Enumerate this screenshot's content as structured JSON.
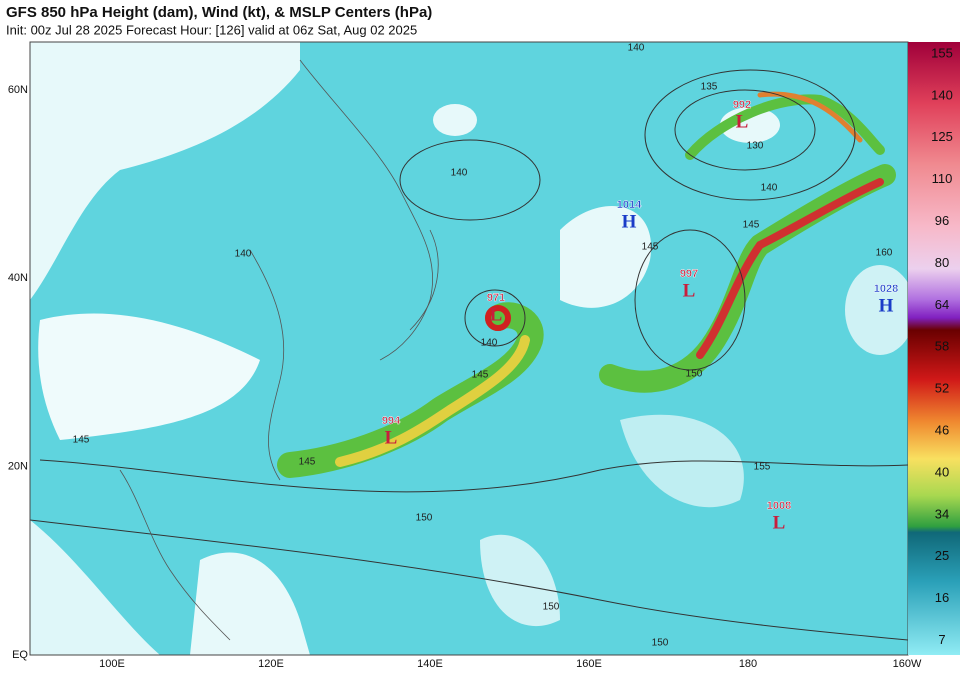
{
  "header": {
    "title": "GFS 850 hPa Height (dam), Wind (kt), & MSLP Centers (hPa)",
    "subtitle": "Init: 00z Jul 28 2025   Forecast Hour: [126]   valid at 06z Sat, Aug 02 2025"
  },
  "map": {
    "lat_labels": [
      "60N",
      "40N",
      "20N",
      "EQ"
    ],
    "lon_labels": [
      "100E",
      "120E",
      "140E",
      "160E",
      "180",
      "160W"
    ],
    "centers": [
      {
        "pressure": "992",
        "type": "L"
      },
      {
        "pressure": "1014",
        "type": "H"
      },
      {
        "pressure": "997",
        "type": "L"
      },
      {
        "pressure": "1028",
        "type": "H"
      },
      {
        "pressure": "971",
        "type": "L"
      },
      {
        "pressure": "994",
        "type": "L"
      },
      {
        "pressure": "1008",
        "type": "L"
      }
    ],
    "contour_labels": [
      "140",
      "135",
      "130",
      "140",
      "145",
      "160",
      "140",
      "140",
      "145",
      "140",
      "145",
      "150",
      "145",
      "145",
      "155",
      "150",
      "150",
      "150"
    ]
  },
  "colorbar": {
    "ticks": [
      "155",
      "140",
      "125",
      "110",
      "96",
      "80",
      "64",
      "58",
      "52",
      "46",
      "40",
      "34",
      "25",
      "16",
      "7"
    ]
  }
}
